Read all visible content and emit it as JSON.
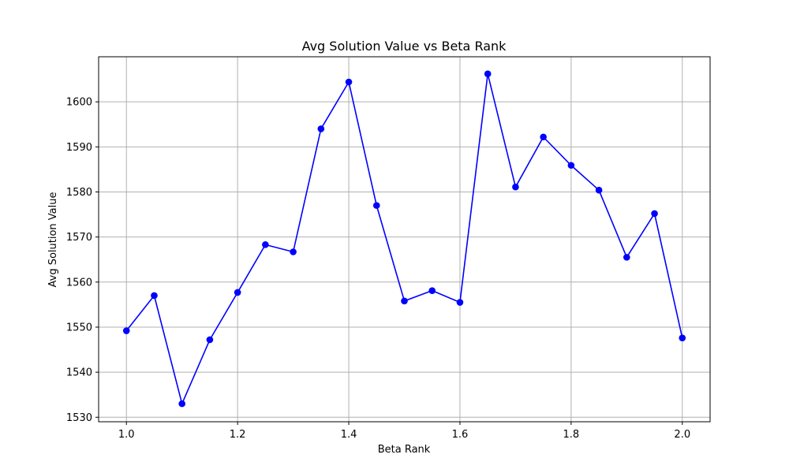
{
  "chart_data": {
    "type": "line",
    "title": "Avg Solution Value vs Beta Rank",
    "xlabel": "Beta Rank",
    "ylabel": "Avg Solution Value",
    "xlim": [
      0.95,
      2.05
    ],
    "ylim": [
      1529,
      1610
    ],
    "xticks": [
      1.0,
      1.2,
      1.4,
      1.6,
      1.8,
      2.0
    ],
    "xtick_labels": [
      "1.0",
      "1.2",
      "1.4",
      "1.6",
      "1.8",
      "2.0"
    ],
    "yticks": [
      1530,
      1540,
      1550,
      1560,
      1570,
      1580,
      1590,
      1600
    ],
    "ytick_labels": [
      "1530",
      "1540",
      "1550",
      "1560",
      "1570",
      "1580",
      "1590",
      "1600"
    ],
    "grid": true,
    "series": [
      {
        "color": "#0000ff",
        "marker": "circle",
        "x": [
          1.0,
          1.05,
          1.1,
          1.15,
          1.2,
          1.25,
          1.3,
          1.35,
          1.4,
          1.45,
          1.5,
          1.55,
          1.6,
          1.65,
          1.7,
          1.75,
          1.8,
          1.85,
          1.9,
          1.95,
          2.0
        ],
        "y": [
          1549.2,
          1557.0,
          1533.0,
          1547.2,
          1557.7,
          1568.3,
          1566.7,
          1594.0,
          1604.4,
          1577.0,
          1555.8,
          1558.1,
          1555.5,
          1606.2,
          1581.1,
          1592.2,
          1585.9,
          1580.4,
          1565.5,
          1575.2,
          1547.6
        ]
      }
    ]
  }
}
